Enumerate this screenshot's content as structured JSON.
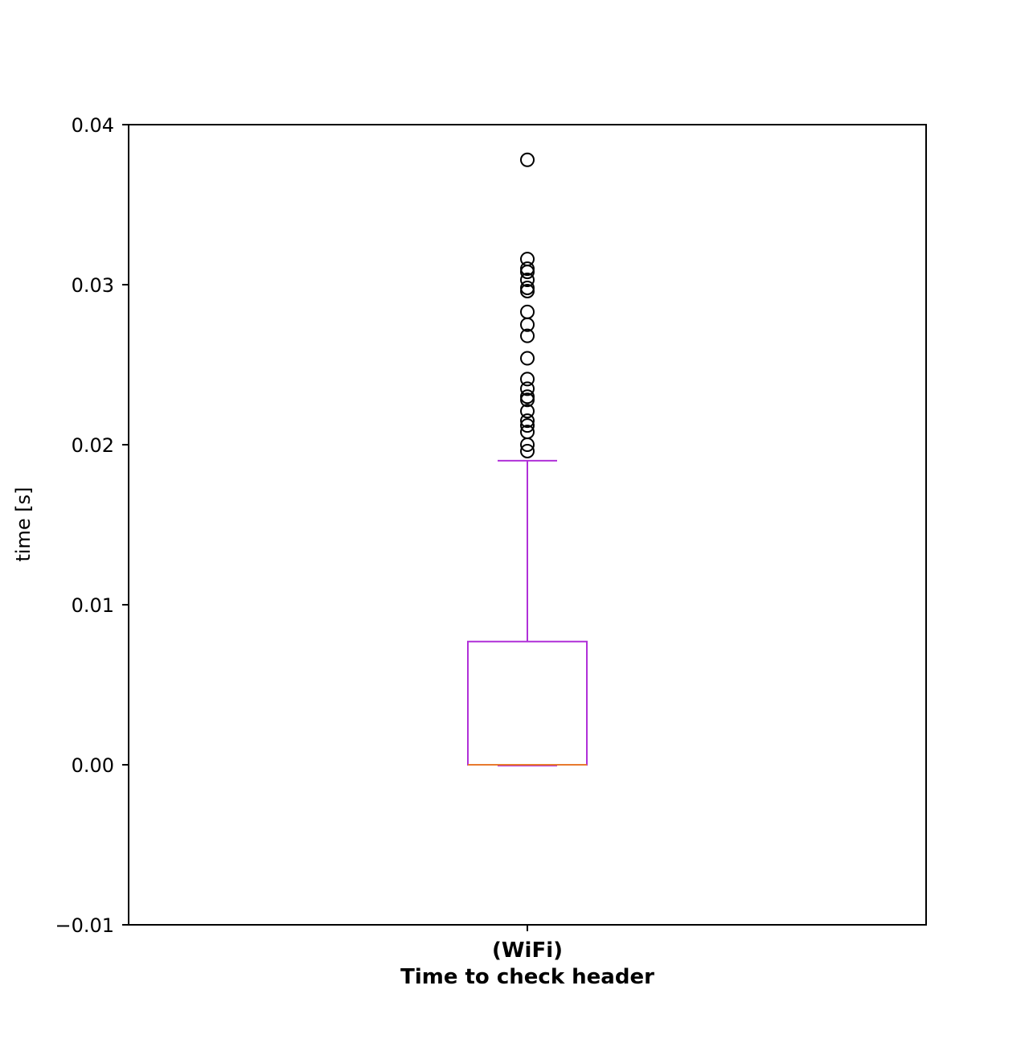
{
  "chart_data": {
    "type": "box",
    "ylabel": "time [s]",
    "ylim": [
      -0.01,
      0.04
    ],
    "yticks": [
      -0.01,
      0.0,
      0.01,
      0.02,
      0.03,
      0.04
    ],
    "ytick_labels": [
      "−0.01",
      "0.00",
      "0.01",
      "0.02",
      "0.03",
      "0.04"
    ],
    "categories": [
      {
        "line1": "(WiFi)",
        "line2": "Time to check header"
      }
    ],
    "boxes": [
      {
        "whisker_low": 0.0,
        "q1": 0.0,
        "median": 0.0,
        "q3": 0.0077,
        "whisker_high": 0.019,
        "outliers": [
          0.0378,
          0.0316,
          0.031,
          0.0308,
          0.0303,
          0.0298,
          0.0296,
          0.0283,
          0.0275,
          0.0268,
          0.0254,
          0.0241,
          0.0235,
          0.023,
          0.0228,
          0.0221,
          0.0215,
          0.0212,
          0.0208,
          0.02,
          0.0196
        ]
      }
    ],
    "colors": {
      "box": "#b030d8",
      "median": "#e87a2e",
      "outlier": "#000000",
      "axes": "#000000"
    },
    "grid": false
  }
}
